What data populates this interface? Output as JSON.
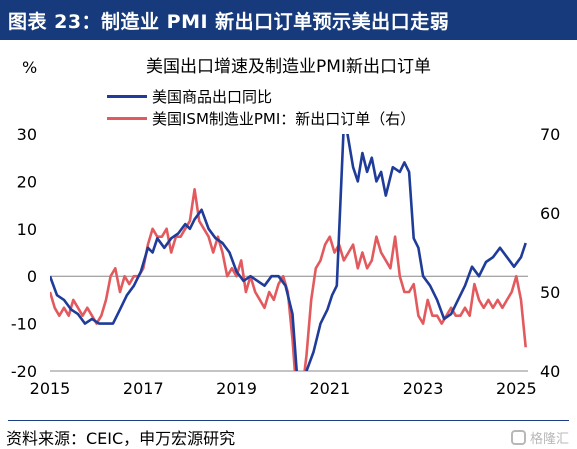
{
  "header": {
    "title": "图表 23：制造业 PMI 新出口订单预示美出口走弱"
  },
  "source": "资料来源：CEIC，申万宏源研究",
  "watermark": "格隆汇",
  "chart_data": {
    "type": "line",
    "title": "美国出口增速及制造业PMI新出口订单",
    "y_unit": "%",
    "x_ticks": [
      "2015",
      "2017",
      "2019",
      "2021",
      "2023",
      "2025"
    ],
    "x_range": [
      2015.0,
      2025.25
    ],
    "y_left": {
      "ticks": [
        30,
        20,
        10,
        0,
        -10,
        -20
      ],
      "range": [
        -20,
        30
      ]
    },
    "y_right": {
      "ticks": [
        70,
        60,
        50,
        40
      ],
      "range": [
        40,
        70
      ]
    },
    "series": [
      {
        "name": "美国商品出口同比",
        "color": "#1f3c99",
        "axis": "left",
        "points": [
          [
            2015.0,
            0
          ],
          [
            2015.15,
            -4
          ],
          [
            2015.3,
            -5
          ],
          [
            2015.45,
            -7
          ],
          [
            2015.6,
            -8
          ],
          [
            2015.75,
            -10
          ],
          [
            2015.9,
            -9
          ],
          [
            2016.05,
            -10
          ],
          [
            2016.2,
            -10
          ],
          [
            2016.35,
            -10
          ],
          [
            2016.5,
            -7
          ],
          [
            2016.65,
            -4
          ],
          [
            2016.8,
            -2
          ],
          [
            2016.95,
            1
          ],
          [
            2017.1,
            6
          ],
          [
            2017.2,
            5
          ],
          [
            2017.3,
            8
          ],
          [
            2017.45,
            6
          ],
          [
            2017.6,
            8
          ],
          [
            2017.75,
            9
          ],
          [
            2017.9,
            11
          ],
          [
            2018.0,
            10
          ],
          [
            2018.1,
            12
          ],
          [
            2018.25,
            14
          ],
          [
            2018.4,
            10
          ],
          [
            2018.55,
            8
          ],
          [
            2018.7,
            7
          ],
          [
            2018.85,
            5
          ],
          [
            2019.0,
            1
          ],
          [
            2019.15,
            -1
          ],
          [
            2019.3,
            0
          ],
          [
            2019.45,
            -1
          ],
          [
            2019.6,
            -2
          ],
          [
            2019.75,
            0
          ],
          [
            2019.9,
            0
          ],
          [
            2020.05,
            -2
          ],
          [
            2020.2,
            -8
          ],
          [
            2020.35,
            -28
          ],
          [
            2020.5,
            -20
          ],
          [
            2020.65,
            -16
          ],
          [
            2020.8,
            -10
          ],
          [
            2020.95,
            -7
          ],
          [
            2021.05,
            -4
          ],
          [
            2021.15,
            -2
          ],
          [
            2021.3,
            32
          ],
          [
            2021.38,
            30
          ],
          [
            2021.5,
            23
          ],
          [
            2021.6,
            20
          ],
          [
            2021.7,
            26
          ],
          [
            2021.8,
            22
          ],
          [
            2021.9,
            25
          ],
          [
            2022.0,
            20
          ],
          [
            2022.1,
            22
          ],
          [
            2022.2,
            17
          ],
          [
            2022.35,
            23
          ],
          [
            2022.5,
            22
          ],
          [
            2022.6,
            24
          ],
          [
            2022.7,
            22
          ],
          [
            2022.8,
            8
          ],
          [
            2022.9,
            6
          ],
          [
            2023.0,
            0
          ],
          [
            2023.15,
            -2
          ],
          [
            2023.3,
            -5
          ],
          [
            2023.45,
            -9
          ],
          [
            2023.6,
            -8
          ],
          [
            2023.75,
            -5
          ],
          [
            2023.9,
            -2
          ],
          [
            2024.05,
            2
          ],
          [
            2024.2,
            0
          ],
          [
            2024.35,
            3
          ],
          [
            2024.5,
            4
          ],
          [
            2024.65,
            6
          ],
          [
            2024.8,
            4
          ],
          [
            2024.95,
            2
          ],
          [
            2025.1,
            4
          ],
          [
            2025.2,
            7
          ]
        ]
      },
      {
        "name": "美国ISM制造业PMI：新出口订单（右）",
        "color": "#e35a5e",
        "axis": "right",
        "points": [
          [
            2015.0,
            50
          ],
          [
            2015.1,
            48
          ],
          [
            2015.2,
            47
          ],
          [
            2015.3,
            48
          ],
          [
            2015.4,
            47
          ],
          [
            2015.5,
            49
          ],
          [
            2015.6,
            48
          ],
          [
            2015.7,
            47
          ],
          [
            2015.8,
            48
          ],
          [
            2015.9,
            47
          ],
          [
            2016.0,
            46
          ],
          [
            2016.1,
            47
          ],
          [
            2016.2,
            49
          ],
          [
            2016.3,
            52
          ],
          [
            2016.4,
            53
          ],
          [
            2016.5,
            50
          ],
          [
            2016.6,
            52
          ],
          [
            2016.7,
            51
          ],
          [
            2016.8,
            52
          ],
          [
            2016.9,
            52
          ],
          [
            2017.0,
            53
          ],
          [
            2017.1,
            56
          ],
          [
            2017.2,
            58
          ],
          [
            2017.3,
            57
          ],
          [
            2017.4,
            57
          ],
          [
            2017.5,
            58
          ],
          [
            2017.6,
            55
          ],
          [
            2017.7,
            57
          ],
          [
            2017.8,
            57
          ],
          [
            2017.9,
            58
          ],
          [
            2018.0,
            59
          ],
          [
            2018.1,
            63
          ],
          [
            2018.2,
            59
          ],
          [
            2018.3,
            58
          ],
          [
            2018.4,
            57
          ],
          [
            2018.5,
            55
          ],
          [
            2018.6,
            57
          ],
          [
            2018.7,
            55
          ],
          [
            2018.8,
            52
          ],
          [
            2018.9,
            53
          ],
          [
            2019.0,
            52
          ],
          [
            2019.1,
            54
          ],
          [
            2019.2,
            50
          ],
          [
            2019.3,
            52
          ],
          [
            2019.4,
            50
          ],
          [
            2019.5,
            49
          ],
          [
            2019.6,
            48
          ],
          [
            2019.7,
            50
          ],
          [
            2019.8,
            49
          ],
          [
            2019.9,
            51
          ],
          [
            2020.0,
            52
          ],
          [
            2020.1,
            50
          ],
          [
            2020.2,
            44
          ],
          [
            2020.3,
            36
          ],
          [
            2020.4,
            37
          ],
          [
            2020.5,
            42
          ],
          [
            2020.6,
            49
          ],
          [
            2020.7,
            53
          ],
          [
            2020.8,
            54
          ],
          [
            2020.9,
            56
          ],
          [
            2021.0,
            57
          ],
          [
            2021.1,
            55
          ],
          [
            2021.2,
            56
          ],
          [
            2021.3,
            54
          ],
          [
            2021.4,
            55
          ],
          [
            2021.5,
            56
          ],
          [
            2021.6,
            53
          ],
          [
            2021.7,
            55
          ],
          [
            2021.8,
            53
          ],
          [
            2021.9,
            54
          ],
          [
            2022.0,
            57
          ],
          [
            2022.1,
            55
          ],
          [
            2022.2,
            54
          ],
          [
            2022.3,
            53
          ],
          [
            2022.4,
            57
          ],
          [
            2022.5,
            52
          ],
          [
            2022.6,
            50
          ],
          [
            2022.7,
            50
          ],
          [
            2022.8,
            51
          ],
          [
            2022.9,
            47
          ],
          [
            2023.0,
            46
          ],
          [
            2023.1,
            49
          ],
          [
            2023.2,
            47
          ],
          [
            2023.3,
            47
          ],
          [
            2023.4,
            46
          ],
          [
            2023.5,
            47
          ],
          [
            2023.6,
            48
          ],
          [
            2023.7,
            47
          ],
          [
            2023.8,
            47
          ],
          [
            2023.9,
            48
          ],
          [
            2024.0,
            47
          ],
          [
            2024.1,
            51
          ],
          [
            2024.2,
            49
          ],
          [
            2024.3,
            48
          ],
          [
            2024.4,
            49
          ],
          [
            2024.5,
            48
          ],
          [
            2024.6,
            49
          ],
          [
            2024.7,
            48
          ],
          [
            2024.8,
            49
          ],
          [
            2024.9,
            50
          ],
          [
            2025.0,
            52
          ],
          [
            2025.1,
            49
          ],
          [
            2025.2,
            43
          ]
        ]
      }
    ]
  }
}
